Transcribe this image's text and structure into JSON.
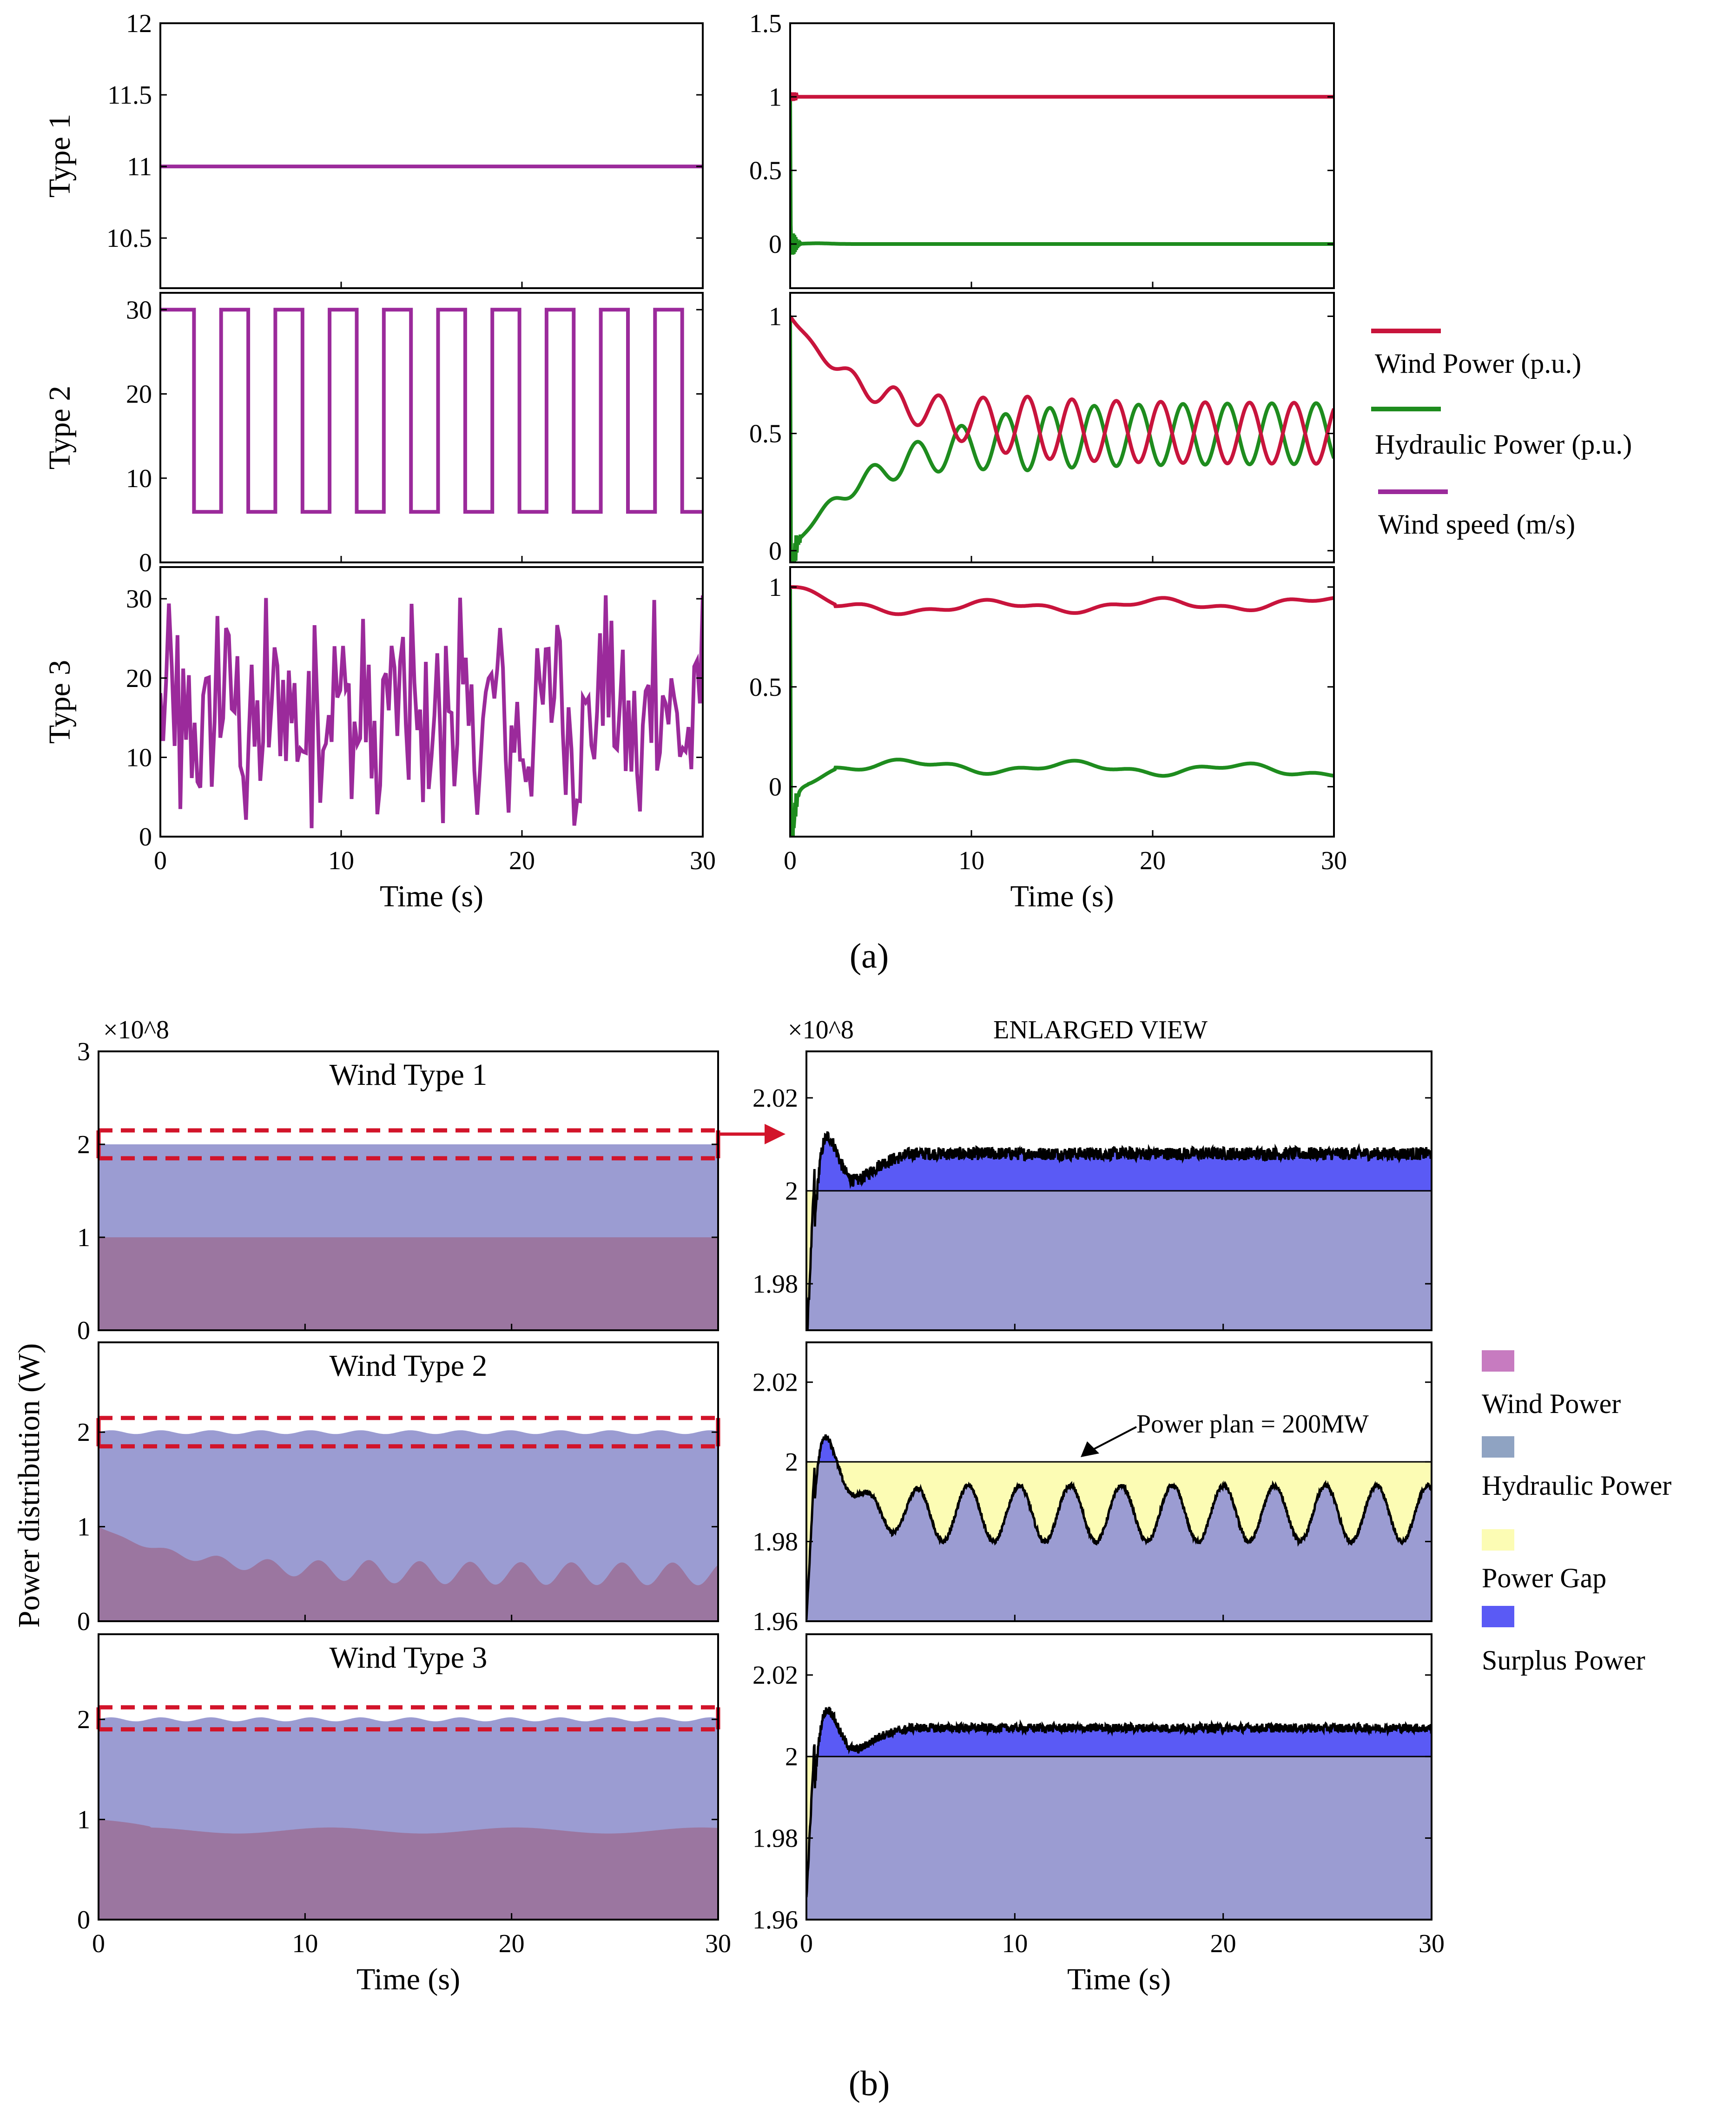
{
  "caption_a": "(a)",
  "caption_b": "(b)",
  "legend_a": [
    {
      "label": "Wind Power (p.u.)",
      "color": "#c8143c"
    },
    {
      "label": "Hydraulic Power (p.u.)",
      "color": "#1e8c1e"
    },
    {
      "label": "Wind speed (m/s)",
      "color": "#9b2a9b"
    }
  ],
  "legend_b": [
    {
      "label": "Wind Power",
      "color": "#c77bc0"
    },
    {
      "label": "Hydraulic Power",
      "color": "#8fa3c2"
    },
    {
      "label": "Power Gap",
      "color": "#fcfcb4"
    },
    {
      "label": "Surplus Power",
      "color": "#5a5af5"
    }
  ],
  "annotation": "Power plan = 200MW",
  "colors": {
    "wind_speed": "#9b2a9b",
    "wind_power": "#c8143c",
    "hydraulic": "#1e8c1e",
    "wind_area": "#9b76a0",
    "hydraulic_area": "#9b9cd2",
    "gap": "#fcfcb4",
    "surplus": "#5a5af5",
    "dashed": "#d2142a"
  },
  "chart_data": [
    {
      "id": "a_speed_t1",
      "type": "line",
      "row_label": "Type 1",
      "xlim": [
        0,
        30
      ],
      "ylim": [
        10.15,
        12
      ],
      "yticks": [
        10.5,
        11,
        11.5,
        12
      ],
      "ytick_labels": [
        "10.5",
        "11",
        "11.5",
        "12"
      ],
      "series": [
        {
          "name": "Wind speed (m/s)",
          "kind": "const",
          "value": 11
        }
      ]
    },
    {
      "id": "a_speed_t2",
      "type": "line",
      "row_label": "Type 2",
      "xlim": [
        0,
        30
      ],
      "ylim": [
        0,
        32
      ],
      "yticks": [
        0,
        10,
        20,
        30
      ],
      "ytick_labels": [
        "0",
        "10",
        "20",
        "30"
      ],
      "series": [
        {
          "name": "Wind speed (m/s)",
          "kind": "square",
          "high": 30,
          "low": 6,
          "period": 3,
          "duty": 0.5,
          "start": 0.2,
          "end": 30
        }
      ]
    },
    {
      "id": "a_speed_t3",
      "type": "line",
      "row_label": "Type 3",
      "xlim": [
        0,
        30
      ],
      "ylim": [
        0,
        34
      ],
      "yticks": [
        0,
        10,
        20,
        30
      ],
      "ytick_labels": [
        "0",
        "10",
        "20",
        "30"
      ],
      "xticks": [
        0,
        10,
        20,
        30
      ],
      "xtick_labels": [
        "0",
        "10",
        "20",
        "30"
      ],
      "xlabel": "Time (s)",
      "series": [
        {
          "name": "Wind speed (m/s)",
          "kind": "random",
          "mean": 15,
          "min": 1,
          "max": 31
        }
      ]
    },
    {
      "id": "a_power_t1",
      "type": "line",
      "xlim": [
        0,
        30
      ],
      "ylim": [
        -0.3,
        1.5
      ],
      "yticks": [
        0,
        0.5,
        1,
        1.5
      ],
      "ytick_labels": [
        "0",
        "0.5",
        "1",
        "1.5"
      ],
      "series": [
        {
          "name": "Wind Power (p.u.)",
          "kind": "const",
          "value": 1
        },
        {
          "name": "Hydraulic Power (p.u.)",
          "kind": "const",
          "value": 0
        }
      ]
    },
    {
      "id": "a_power_t2",
      "type": "line",
      "xlim": [
        0,
        30
      ],
      "ylim": [
        -0.05,
        1.1
      ],
      "yticks": [
        0,
        0.5,
        1
      ],
      "ytick_labels": [
        "0",
        "0.5",
        "1"
      ],
      "series": [
        {
          "name": "Wind Power (p.u.)",
          "kind": "oscill",
          "sign": 1
        },
        {
          "name": "Hydraulic Power (p.u.)",
          "kind": "oscill",
          "sign": -1
        }
      ]
    },
    {
      "id": "a_power_t3",
      "type": "line",
      "xlim": [
        0,
        30
      ],
      "ylim": [
        -0.25,
        1.1
      ],
      "yticks": [
        0,
        0.5,
        1
      ],
      "ytick_labels": [
        "0",
        "0.5",
        "1"
      ],
      "xticks": [
        0,
        10,
        20,
        30
      ],
      "xtick_labels": [
        "0",
        "10",
        "20",
        "30"
      ],
      "xlabel": "Time (s)",
      "series": [
        {
          "name": "Wind Power (p.u.)",
          "kind": "smooth",
          "value": 0.9
        },
        {
          "name": "Hydraulic Power (p.u.)",
          "kind": "smooth",
          "value": 0.1
        }
      ]
    },
    {
      "id": "b_dist_t1",
      "type": "area",
      "title": "Wind Type 1",
      "xlim": [
        0,
        30
      ],
      "ylim": [
        0,
        3
      ],
      "yticks": [
        0,
        1,
        2,
        3
      ],
      "ytick_labels": [
        "0",
        "1",
        "2",
        "3"
      ],
      "multiplier": "×10^8",
      "series": [
        {
          "name": "Wind Power",
          "value": 1.0
        },
        {
          "name": "Hydraulic Power",
          "value": 2.0
        }
      ],
      "zoom_band": [
        1.85,
        2.15
      ]
    },
    {
      "id": "b_dist_t2",
      "type": "area",
      "title": "Wind Type 2",
      "xlim": [
        0,
        30
      ],
      "ylim": [
        0,
        2.95
      ],
      "yticks": [
        0,
        1,
        2
      ],
      "ytick_labels": [
        "0",
        "1",
        "2"
      ],
      "series": [
        {
          "name": "Wind Power",
          "value": 0.6
        },
        {
          "name": "Hydraulic Power",
          "value": 2.0
        }
      ],
      "zoom_band": [
        1.85,
        2.15
      ]
    },
    {
      "id": "b_dist_t3",
      "type": "area",
      "title": "Wind Type 3",
      "xlim": [
        0,
        30
      ],
      "ylim": [
        0,
        2.85
      ],
      "yticks": [
        0,
        1,
        2
      ],
      "ytick_labels": [
        "0",
        "1",
        "2"
      ],
      "xticks": [
        0,
        10,
        20,
        30
      ],
      "xtick_labels": [
        "0",
        "10",
        "20",
        "30"
      ],
      "xlabel": "Time (s)",
      "ylabel": "Power distribution (W)",
      "series": [
        {
          "name": "Wind Power",
          "value": 0.9
        },
        {
          "name": "Hydraulic Power",
          "value": 2.0
        }
      ],
      "zoom_band": [
        1.9,
        2.12
      ]
    },
    {
      "id": "b_zoom_t1",
      "type": "area",
      "title": "ENLARGED VIEW",
      "xlim": [
        0,
        30
      ],
      "ylim": [
        1.97,
        2.03
      ],
      "yticks": [
        1.98,
        2,
        2.02
      ],
      "ytick_labels": [
        "1.98",
        "2",
        "2.02"
      ],
      "multiplier": "×10^8",
      "power_plan": 2.0,
      "series": [
        {
          "name": "Surplus Power",
          "steady": 2.008
        }
      ]
    },
    {
      "id": "b_zoom_t2",
      "type": "area",
      "xlim": [
        0,
        30
      ],
      "ylim": [
        1.96,
        2.03
      ],
      "yticks": [
        1.96,
        1.98,
        2,
        2.02
      ],
      "ytick_labels": [
        "1.96",
        "1.98",
        "2",
        "2.02"
      ],
      "power_plan": 2.0,
      "series": [
        {
          "name": "Power Gap",
          "mean": 1.987,
          "amplitude": 0.007
        }
      ]
    },
    {
      "id": "b_zoom_t3",
      "type": "area",
      "xlim": [
        0,
        30
      ],
      "ylim": [
        1.96,
        2.03
      ],
      "yticks": [
        1.96,
        1.98,
        2,
        2.02
      ],
      "ytick_labels": [
        "1.96",
        "1.98",
        "2",
        "2.02"
      ],
      "power_plan": 2.0,
      "xticks": [
        0,
        10,
        20,
        30
      ],
      "xtick_labels": [
        "0",
        "10",
        "20",
        "30"
      ],
      "xlabel": "Time (s)",
      "series": [
        {
          "name": "Surplus Power",
          "steady": 2.007
        }
      ]
    }
  ]
}
